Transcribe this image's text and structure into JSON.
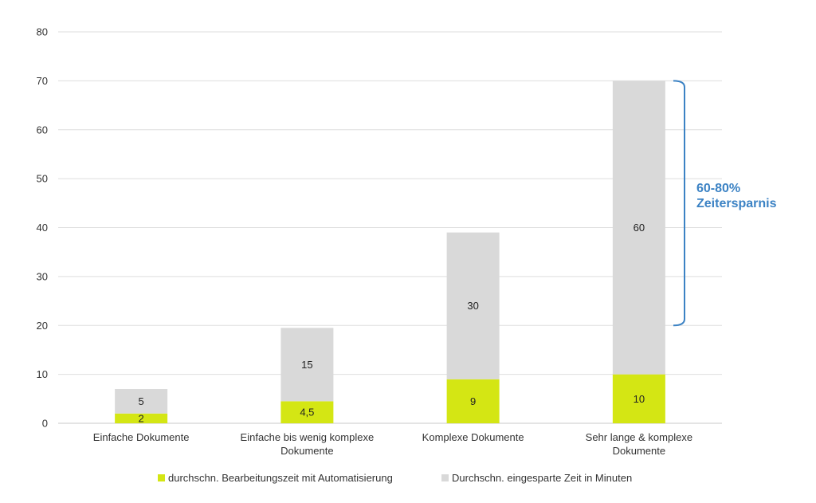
{
  "chart_data": {
    "type": "bar",
    "stacked": true,
    "categories": [
      [
        "Einfache Dokumente"
      ],
      [
        "Einfache bis wenig komplexe",
        "Dokumente"
      ],
      [
        "Komplexe Dokumente"
      ],
      [
        "Sehr lange & komplexe",
        "Dokumente"
      ]
    ],
    "series": [
      {
        "name": "durchschn. Bearbeitungszeit mit Automatisierung",
        "color": "#d4e614",
        "values": [
          2,
          4.5,
          9,
          10
        ],
        "labels": [
          "2",
          "4,5",
          "9",
          "10"
        ]
      },
      {
        "name": "Durchschn. eingesparte Zeit in Minuten",
        "color": "#d9d9d9",
        "values": [
          5,
          15,
          30,
          60
        ],
        "labels": [
          "5",
          "15",
          "30",
          "60"
        ]
      }
    ],
    "ylim": [
      0,
      80
    ],
    "yticks": [
      0,
      10,
      20,
      30,
      40,
      50,
      60,
      70,
      80
    ],
    "grid": true,
    "legend": "bottom-center",
    "annotation": {
      "lines": [
        "60-80%",
        "Zeitersparnis"
      ],
      "color": "#3b82c4",
      "bracket_range": [
        20,
        70
      ],
      "target_category": 3
    }
  }
}
